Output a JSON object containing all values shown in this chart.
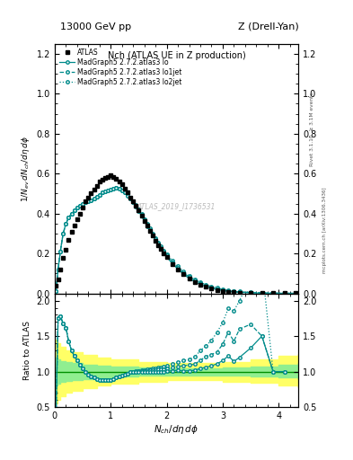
{
  "title_top": "13000 GeV pp",
  "title_right": "Z (Drell-Yan)",
  "plot_title": "Nch (ATLAS UE in Z production)",
  "xlabel": "N$_{ch}$/d$\\eta$ d$\\phi$",
  "ylabel_main": "1/N$_{ev}$ dN$_{ch}$/d$\\eta$ d$\\phi$",
  "ylabel_ratio": "Ratio to ATLAS",
  "watermark": "ATLAS_2019_I1736531",
  "rivet_text": "Rivet 3.1.10, ≥ 3.1M events",
  "mcplots_text": "mcplots.cern.ch [arXiv:1306.3436]",
  "teal_color": "#008b8b",
  "atlas_color": "#222222",
  "green_band_inner": "#90ee90",
  "yellow_band_outer": "#ffff66",
  "atlas_data_x": [
    0.02,
    0.06,
    0.1,
    0.15,
    0.2,
    0.25,
    0.3,
    0.35,
    0.4,
    0.45,
    0.5,
    0.55,
    0.6,
    0.65,
    0.7,
    0.75,
    0.8,
    0.85,
    0.9,
    0.95,
    1.0,
    1.05,
    1.1,
    1.15,
    1.2,
    1.25,
    1.3,
    1.35,
    1.4,
    1.45,
    1.5,
    1.55,
    1.6,
    1.65,
    1.7,
    1.75,
    1.8,
    1.85,
    1.9,
    1.95,
    2.0,
    2.1,
    2.2,
    2.3,
    2.4,
    2.5,
    2.6,
    2.7,
    2.8,
    2.9,
    3.0,
    3.1,
    3.2,
    3.3,
    3.5,
    3.7,
    3.9,
    4.1,
    4.3
  ],
  "atlas_data_y": [
    0.04,
    0.07,
    0.12,
    0.18,
    0.22,
    0.27,
    0.31,
    0.34,
    0.37,
    0.4,
    0.43,
    0.46,
    0.48,
    0.5,
    0.52,
    0.54,
    0.56,
    0.57,
    0.58,
    0.585,
    0.59,
    0.585,
    0.575,
    0.56,
    0.545,
    0.525,
    0.505,
    0.48,
    0.46,
    0.44,
    0.415,
    0.39,
    0.365,
    0.34,
    0.315,
    0.29,
    0.265,
    0.243,
    0.222,
    0.202,
    0.182,
    0.148,
    0.12,
    0.096,
    0.075,
    0.058,
    0.044,
    0.033,
    0.025,
    0.018,
    0.013,
    0.009,
    0.007,
    0.005,
    0.003,
    0.002,
    0.001,
    0.001,
    0.001
  ],
  "mc_lo_x": [
    0.02,
    0.06,
    0.1,
    0.15,
    0.2,
    0.25,
    0.3,
    0.35,
    0.4,
    0.45,
    0.5,
    0.55,
    0.6,
    0.65,
    0.7,
    0.75,
    0.8,
    0.85,
    0.9,
    0.95,
    1.0,
    1.05,
    1.1,
    1.15,
    1.2,
    1.25,
    1.3,
    1.35,
    1.4,
    1.45,
    1.5,
    1.55,
    1.6,
    1.65,
    1.7,
    1.75,
    1.8,
    1.85,
    1.9,
    1.95,
    2.0,
    2.1,
    2.2,
    2.3,
    2.4,
    2.5,
    2.6,
    2.7,
    2.8,
    2.9,
    3.0,
    3.1,
    3.2,
    3.3,
    3.5,
    3.7,
    3.9,
    4.1,
    4.3
  ],
  "mc_lo_y": [
    0.01,
    0.12,
    0.21,
    0.3,
    0.35,
    0.38,
    0.4,
    0.415,
    0.43,
    0.44,
    0.45,
    0.455,
    0.46,
    0.465,
    0.475,
    0.485,
    0.495,
    0.505,
    0.51,
    0.515,
    0.52,
    0.525,
    0.53,
    0.525,
    0.515,
    0.505,
    0.49,
    0.475,
    0.455,
    0.435,
    0.412,
    0.388,
    0.362,
    0.338,
    0.313,
    0.289,
    0.265,
    0.243,
    0.222,
    0.202,
    0.183,
    0.15,
    0.122,
    0.097,
    0.076,
    0.059,
    0.046,
    0.035,
    0.027,
    0.02,
    0.015,
    0.011,
    0.008,
    0.006,
    0.003,
    0.002,
    0.001,
    0.001,
    0.001
  ],
  "mc_lo1_y": [
    0.01,
    0.12,
    0.21,
    0.3,
    0.35,
    0.38,
    0.4,
    0.415,
    0.43,
    0.44,
    0.45,
    0.455,
    0.46,
    0.465,
    0.475,
    0.485,
    0.495,
    0.505,
    0.51,
    0.515,
    0.52,
    0.525,
    0.53,
    0.525,
    0.515,
    0.505,
    0.491,
    0.477,
    0.458,
    0.439,
    0.416,
    0.393,
    0.368,
    0.344,
    0.32,
    0.296,
    0.272,
    0.25,
    0.229,
    0.209,
    0.19,
    0.157,
    0.129,
    0.104,
    0.082,
    0.064,
    0.051,
    0.04,
    0.031,
    0.023,
    0.018,
    0.014,
    0.01,
    0.008,
    0.005,
    0.003,
    0.002,
    0.001,
    0.001
  ],
  "mc_lo2_y": [
    0.01,
    0.12,
    0.21,
    0.3,
    0.35,
    0.38,
    0.4,
    0.415,
    0.43,
    0.44,
    0.45,
    0.455,
    0.46,
    0.465,
    0.475,
    0.485,
    0.495,
    0.505,
    0.51,
    0.515,
    0.52,
    0.525,
    0.53,
    0.525,
    0.515,
    0.505,
    0.492,
    0.479,
    0.46,
    0.442,
    0.42,
    0.397,
    0.372,
    0.349,
    0.325,
    0.302,
    0.278,
    0.257,
    0.236,
    0.216,
    0.197,
    0.164,
    0.136,
    0.111,
    0.088,
    0.07,
    0.057,
    0.045,
    0.036,
    0.028,
    0.022,
    0.017,
    0.013,
    0.01,
    0.007,
    0.005,
    0.003,
    0.002,
    0.001
  ],
  "ratio_lo_x": [
    0.02,
    0.06,
    0.1,
    0.15,
    0.2,
    0.25,
    0.3,
    0.35,
    0.4,
    0.45,
    0.5,
    0.55,
    0.6,
    0.65,
    0.7,
    0.75,
    0.8,
    0.85,
    0.9,
    0.95,
    1.0,
    1.05,
    1.1,
    1.15,
    1.2,
    1.25,
    1.3,
    1.35,
    1.4,
    1.45,
    1.5,
    1.55,
    1.6,
    1.65,
    1.7,
    1.75,
    1.8,
    1.85,
    1.9,
    1.95,
    2.0,
    2.1,
    2.2,
    2.3,
    2.4,
    2.5,
    2.6,
    2.7,
    2.8,
    2.9,
    3.0,
    3.1,
    3.2,
    3.3,
    3.5,
    3.7,
    3.9,
    4.1,
    4.3
  ],
  "ratio_lo_y": [
    0.25,
    1.75,
    1.78,
    1.68,
    1.62,
    1.42,
    1.3,
    1.22,
    1.16,
    1.1,
    1.05,
    0.99,
    0.96,
    0.93,
    0.915,
    0.9,
    0.885,
    0.885,
    0.879,
    0.88,
    0.881,
    0.898,
    0.922,
    0.938,
    0.945,
    0.962,
    0.97,
    0.99,
    0.99,
    0.989,
    0.992,
    0.995,
    0.993,
    0.994,
    0.994,
    0.997,
    0.998,
    1.0,
    1.0,
    1.0,
    1.005,
    1.014,
    1.017,
    1.01,
    1.013,
    1.017,
    1.045,
    1.061,
    1.08,
    1.111,
    1.154,
    1.222,
    1.143,
    1.2,
    1.333,
    1.5,
    1.0,
    1.0,
    1.0
  ],
  "ratio_lo1_y": [
    0.25,
    1.75,
    1.78,
    1.68,
    1.62,
    1.42,
    1.3,
    1.22,
    1.16,
    1.1,
    1.05,
    0.99,
    0.96,
    0.93,
    0.915,
    0.9,
    0.885,
    0.885,
    0.879,
    0.88,
    0.881,
    0.898,
    0.922,
    0.938,
    0.945,
    0.962,
    0.972,
    0.994,
    0.996,
    0.998,
    1.002,
    1.008,
    1.008,
    1.012,
    1.016,
    1.021,
    1.026,
    1.029,
    1.032,
    1.035,
    1.044,
    1.061,
    1.075,
    1.083,
    1.093,
    1.103,
    1.159,
    1.212,
    1.24,
    1.278,
    1.385,
    1.556,
    1.429,
    1.6,
    1.667,
    1.5,
    1.0,
    1.0,
    1.0
  ],
  "ratio_lo2_y": [
    0.25,
    1.75,
    1.78,
    1.68,
    1.62,
    1.42,
    1.3,
    1.22,
    1.16,
    1.1,
    1.05,
    0.99,
    0.96,
    0.93,
    0.915,
    0.9,
    0.885,
    0.885,
    0.879,
    0.88,
    0.881,
    0.898,
    0.922,
    0.938,
    0.945,
    0.962,
    0.973,
    0.998,
    0.999,
    1.005,
    1.012,
    1.018,
    1.019,
    1.028,
    1.032,
    1.041,
    1.05,
    1.058,
    1.063,
    1.069,
    1.082,
    1.108,
    1.133,
    1.156,
    1.173,
    1.207,
    1.295,
    1.364,
    1.44,
    1.556,
    1.692,
    1.889,
    1.857,
    2.0,
    2.333,
    2.5,
    1.0,
    1.0,
    1.0
  ],
  "band_x": [
    0.0,
    0.05,
    0.1,
    0.2,
    0.3,
    0.5,
    0.75,
    1.0,
    1.5,
    2.0,
    2.5,
    3.0,
    3.5,
    4.0,
    4.35
  ],
  "green_band_lo": [
    0.8,
    0.83,
    0.85,
    0.87,
    0.88,
    0.9,
    0.91,
    0.93,
    0.94,
    0.95,
    0.95,
    0.94,
    0.93,
    0.92,
    0.9
  ],
  "green_band_hi": [
    1.2,
    1.17,
    1.15,
    1.13,
    1.12,
    1.1,
    1.09,
    1.07,
    1.06,
    1.05,
    1.05,
    1.06,
    1.07,
    1.1,
    1.12
  ],
  "yellow_band_lo": [
    0.55,
    0.6,
    0.65,
    0.7,
    0.73,
    0.77,
    0.8,
    0.83,
    0.86,
    0.88,
    0.88,
    0.86,
    0.84,
    0.8,
    0.78
  ],
  "yellow_band_hi": [
    1.45,
    1.4,
    1.35,
    1.3,
    1.27,
    1.23,
    1.2,
    1.17,
    1.14,
    1.12,
    1.12,
    1.14,
    1.17,
    1.22,
    1.25
  ],
  "xlim": [
    0.0,
    4.35
  ],
  "ylim_main": [
    0.0,
    1.25
  ],
  "ylim_ratio": [
    0.5,
    2.1
  ],
  "yticks_main": [
    0.0,
    0.2,
    0.4,
    0.6,
    0.8,
    1.0,
    1.2
  ],
  "yticks_ratio": [
    0.5,
    1.0,
    1.5,
    2.0
  ],
  "xticks": [
    0.0,
    1.0,
    2.0,
    3.0,
    4.0
  ]
}
